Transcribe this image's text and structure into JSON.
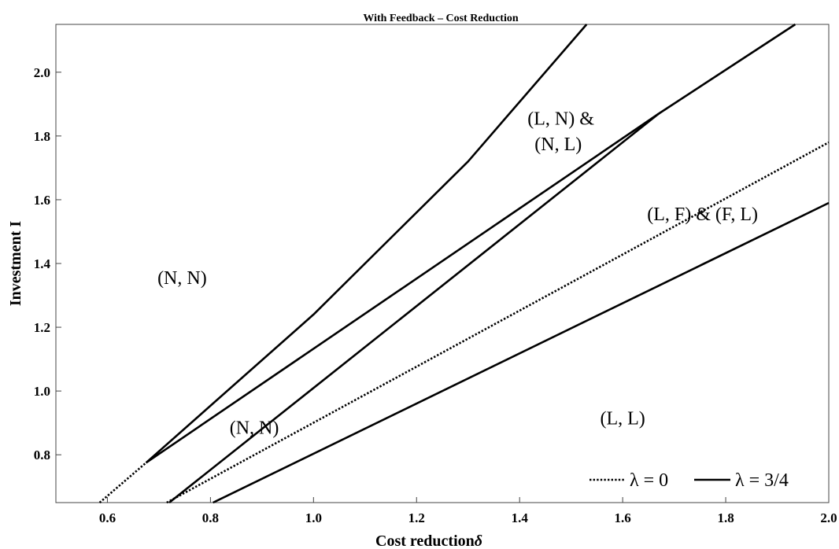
{
  "chart_data": {
    "type": "line",
    "title": "With Feedback  –  Cost  Reduction",
    "xlabel": "Cost reduction",
    "xlabel_symbol": "δ",
    "ylabel": "Investment  I",
    "xlim": [
      0.5,
      2.0
    ],
    "ylim": [
      0.65,
      2.15
    ],
    "x_ticks": [
      0.6,
      0.8,
      1.0,
      1.2,
      1.4,
      1.6,
      1.8,
      2.0
    ],
    "x_tick_labels": [
      "0.6",
      "0.8",
      "1.0",
      "1.2",
      "1.4",
      "1.6",
      "1.8",
      "2.0"
    ],
    "y_ticks": [
      0.8,
      1.0,
      1.2,
      1.4,
      1.6,
      1.8,
      2.0
    ],
    "y_tick_labels": [
      "0.8",
      "1.0",
      "1.2",
      "1.4",
      "1.6",
      "1.8",
      "2.0"
    ],
    "grid": false,
    "legend_position": "bottom-right",
    "legend": [
      {
        "label": "λ = 0",
        "style": "dotted"
      },
      {
        "label": "λ = 3/4",
        "style": "solid"
      }
    ],
    "series": [
      {
        "style": "solid",
        "points": [
          [
            0.675,
            0.775
          ],
          [
            1.0,
            1.24
          ],
          [
            1.3,
            1.72
          ],
          [
            1.53,
            2.15
          ]
        ]
      },
      {
        "style": "solid",
        "points": [
          [
            0.675,
            0.775
          ],
          [
            1.67,
            1.87
          ],
          [
            1.935,
            2.15
          ]
        ]
      },
      {
        "style": "solid",
        "points": [
          [
            0.72,
            0.65
          ],
          [
            1.67,
            1.87
          ]
        ]
      },
      {
        "style": "solid",
        "points": [
          [
            0.805,
            0.65
          ],
          [
            2.0,
            1.59
          ]
        ]
      },
      {
        "style": "dotted",
        "points": [
          [
            0.585,
            0.65
          ],
          [
            0.675,
            0.775
          ]
        ]
      },
      {
        "style": "dotted",
        "points": [
          [
            0.715,
            0.65
          ],
          [
            2.0,
            1.78
          ]
        ]
      }
    ],
    "annotations": [
      {
        "name": "region-label-nn-left",
        "text": "(N, N)",
        "x": 0.745,
        "y": 1.355
      },
      {
        "name": "region-label-nn-center",
        "text": "(N, N)",
        "x": 0.885,
        "y": 0.885
      },
      {
        "name": "region-label-ln-nl-line1",
        "text": "(L, N) &",
        "x": 1.48,
        "y": 1.855
      },
      {
        "name": "region-label-ln-nl-line2",
        "text": "(N, L)",
        "x": 1.475,
        "y": 1.775
      },
      {
        "name": "region-label-lf-fl",
        "text": "(L, F) & (F, L)",
        "x": 1.755,
        "y": 1.555
      },
      {
        "name": "region-label-ll",
        "text": "(L, L)",
        "x": 1.6,
        "y": 0.915
      }
    ]
  }
}
